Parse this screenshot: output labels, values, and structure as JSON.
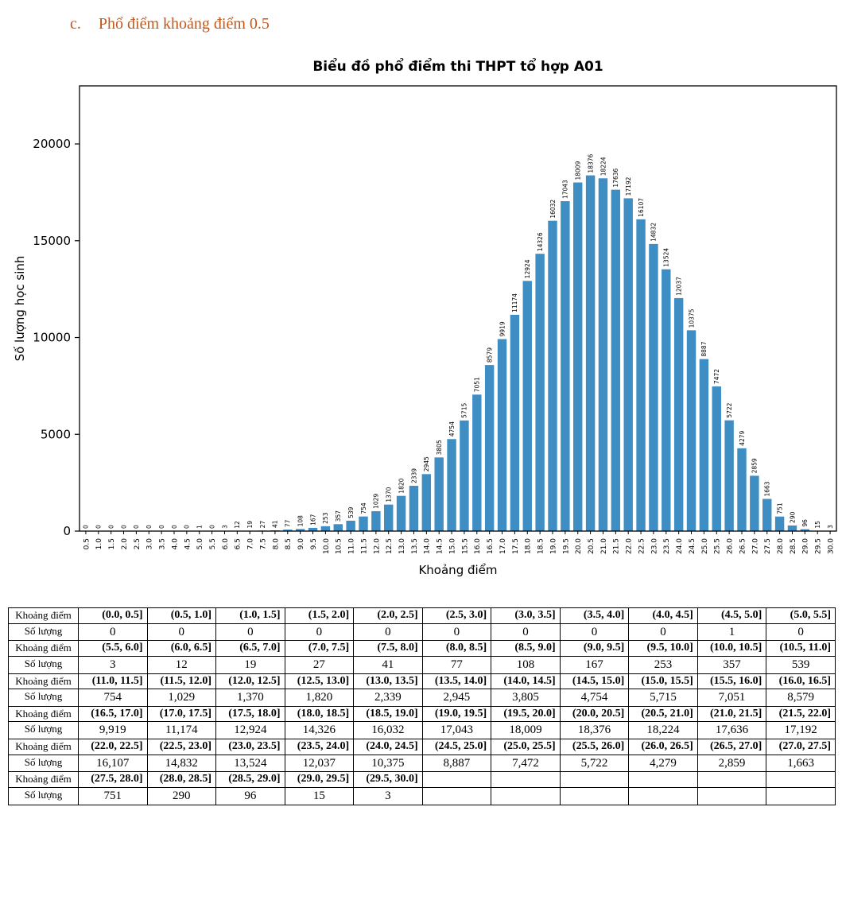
{
  "heading": {
    "index": "c.",
    "text": "Phổ điểm khoảng điểm 0.5"
  },
  "chart_data": {
    "type": "bar",
    "title": "Biểu đồ phổ điểm thi THPT tổ hợp A01",
    "xlabel": "Khoảng điểm",
    "ylabel": "Số lượng học sinh",
    "categories": [
      "0.5",
      "1.0",
      "1.5",
      "2.0",
      "2.5",
      "3.0",
      "3.5",
      "4.0",
      "4.5",
      "5.0",
      "5.5",
      "6.0",
      "6.5",
      "7.0",
      "7.5",
      "8.0",
      "8.5",
      "9.0",
      "9.5",
      "10.0",
      "10.5",
      "11.0",
      "11.5",
      "12.0",
      "12.5",
      "13.0",
      "13.5",
      "14.0",
      "14.5",
      "15.0",
      "15.5",
      "16.0",
      "16.5",
      "17.0",
      "17.5",
      "18.0",
      "18.5",
      "19.0",
      "19.5",
      "20.0",
      "20.5",
      "21.0",
      "21.5",
      "22.0",
      "22.5",
      "23.0",
      "23.5",
      "24.0",
      "24.5",
      "25.0",
      "25.5",
      "26.0",
      "26.5",
      "27.0",
      "27.5",
      "28.0",
      "28.5",
      "29.0",
      "29.5",
      "30.0"
    ],
    "values": [
      0,
      0,
      0,
      0,
      0,
      0,
      0,
      0,
      0,
      1,
      0,
      3,
      12,
      19,
      27,
      41,
      77,
      108,
      167,
      253,
      357,
      539,
      754,
      1029,
      1370,
      1820,
      2339,
      2945,
      3805,
      4754,
      5715,
      7051,
      8579,
      9919,
      11174,
      12924,
      14326,
      16032,
      17043,
      18009,
      18376,
      18224,
      17636,
      17192,
      16107,
      14832,
      13524,
      12037,
      10375,
      8887,
      7472,
      5722,
      4279,
      2859,
      1663,
      751,
      290,
      96,
      15,
      3
    ],
    "ylim": [
      0,
      23000
    ],
    "yticks": [
      0,
      5000,
      10000,
      15000,
      20000
    ],
    "bar_color": "#3e8ec4",
    "grid": false,
    "legend": null
  },
  "table": {
    "range_label": "Khoảng điểm",
    "count_label": "Số lượng",
    "pairs": [
      {
        "ranges": [
          "(0.0, 0.5]",
          "(0.5, 1.0]",
          "(1.0, 1.5]",
          "(1.5, 2.0]",
          "(2.0, 2.5]",
          "(2.5, 3.0]",
          "(3.0, 3.5]",
          "(3.5, 4.0]",
          "(4.0, 4.5]",
          "(4.5, 5.0]",
          "(5.0, 5.5]"
        ],
        "counts": [
          "0",
          "0",
          "0",
          "0",
          "0",
          "0",
          "0",
          "0",
          "0",
          "1",
          "0"
        ]
      },
      {
        "ranges": [
          "(5.5, 6.0]",
          "(6.0, 6.5]",
          "(6.5, 7.0]",
          "(7.0, 7.5]",
          "(7.5, 8.0]",
          "(8.0, 8.5]",
          "(8.5, 9.0]",
          "(9.0, 9.5]",
          "(9.5, 10.0]",
          "(10.0, 10.5]",
          "(10.5, 11.0]"
        ],
        "counts": [
          "3",
          "12",
          "19",
          "27",
          "41",
          "77",
          "108",
          "167",
          "253",
          "357",
          "539"
        ]
      },
      {
        "ranges": [
          "(11.0, 11.5]",
          "(11.5, 12.0]",
          "(12.0, 12.5]",
          "(12.5, 13.0]",
          "(13.0, 13.5]",
          "(13.5, 14.0]",
          "(14.0, 14.5]",
          "(14.5, 15.0]",
          "(15.0, 15.5]",
          "(15.5, 16.0]",
          "(16.0, 16.5]"
        ],
        "counts": [
          "754",
          "1,029",
          "1,370",
          "1,820",
          "2,339",
          "2,945",
          "3,805",
          "4,754",
          "5,715",
          "7,051",
          "8,579"
        ]
      },
      {
        "ranges": [
          "(16.5, 17.0]",
          "(17.0, 17.5]",
          "(17.5, 18.0]",
          "(18.0, 18.5]",
          "(18.5, 19.0]",
          "(19.0, 19.5]",
          "(19.5, 20.0]",
          "(20.0, 20.5]",
          "(20.5, 21.0]",
          "(21.0, 21.5]",
          "(21.5, 22.0]"
        ],
        "counts": [
          "9,919",
          "11,174",
          "12,924",
          "14,326",
          "16,032",
          "17,043",
          "18,009",
          "18,376",
          "18,224",
          "17,636",
          "17,192"
        ]
      },
      {
        "ranges": [
          "(22.0, 22.5]",
          "(22.5, 23.0]",
          "(23.0, 23.5]",
          "(23.5, 24.0]",
          "(24.0, 24.5]",
          "(24.5, 25.0]",
          "(25.0, 25.5]",
          "(25.5, 26.0]",
          "(26.0, 26.5]",
          "(26.5, 27.0]",
          "(27.0, 27.5]"
        ],
        "counts": [
          "16,107",
          "14,832",
          "13,524",
          "12,037",
          "10,375",
          "8,887",
          "7,472",
          "5,722",
          "4,279",
          "2,859",
          "1,663"
        ]
      },
      {
        "ranges": [
          "(27.5, 28.0]",
          "(28.0, 28.5]",
          "(28.5, 29.0]",
          "(29.0, 29.5]",
          "(29.5, 30.0]",
          "",
          "",
          "",
          "",
          "",
          ""
        ],
        "counts": [
          "751",
          "290",
          "96",
          "15",
          "3",
          "",
          "",
          "",
          "",
          "",
          ""
        ]
      }
    ]
  }
}
